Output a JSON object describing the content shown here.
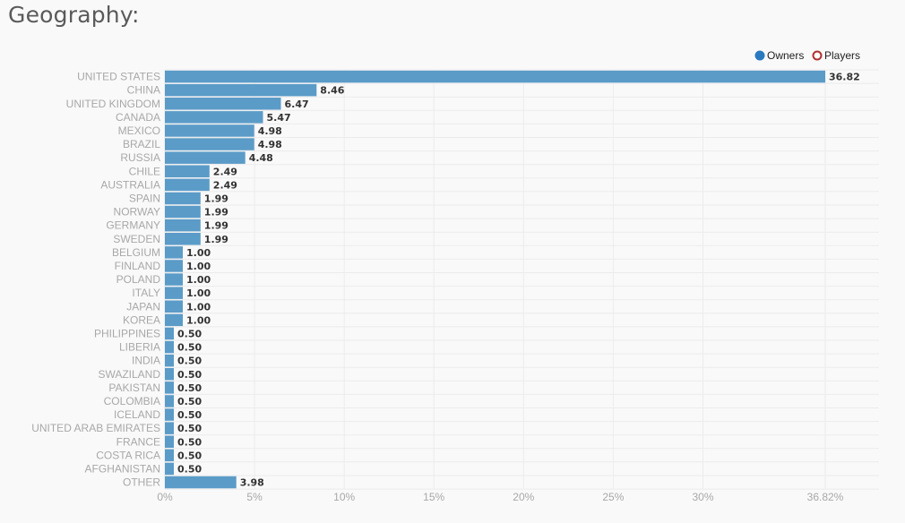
{
  "page": {
    "title": "Geography:"
  },
  "chart_data": {
    "type": "bar",
    "orientation": "horizontal",
    "categories": [
      "UNITED STATES",
      "CHINA",
      "UNITED KINGDOM",
      "CANADA",
      "MEXICO",
      "BRAZIL",
      "RUSSIA",
      "CHILE",
      "AUSTRALIA",
      "SPAIN",
      "NORWAY",
      "GERMANY",
      "SWEDEN",
      "BELGIUM",
      "FINLAND",
      "POLAND",
      "ITALY",
      "JAPAN",
      "KOREA",
      "PHILIPPINES",
      "LIBERIA",
      "INDIA",
      "SWAZILAND",
      "PAKISTAN",
      "COLOMBIA",
      "ICELAND",
      "UNITED ARAB EMIRATES",
      "FRANCE",
      "COSTA RICA",
      "AFGHANISTAN",
      "OTHER"
    ],
    "series": [
      {
        "name": "Owners",
        "color": "#5b9bc8",
        "values": [
          36.82,
          8.46,
          6.47,
          5.47,
          4.98,
          4.98,
          4.48,
          2.49,
          2.49,
          1.99,
          1.99,
          1.99,
          1.99,
          1.0,
          1.0,
          1.0,
          1.0,
          1.0,
          1.0,
          0.5,
          0.5,
          0.5,
          0.5,
          0.5,
          0.5,
          0.5,
          0.5,
          0.5,
          0.5,
          0.5,
          3.98
        ],
        "value_labels": [
          "36.82",
          "8.46",
          "6.47",
          "5.47",
          "4.98",
          "4.98",
          "4.48",
          "2.49",
          "2.49",
          "1.99",
          "1.99",
          "1.99",
          "1.99",
          "1.00",
          "1.00",
          "1.00",
          "1.00",
          "1.00",
          "1.00",
          "0.50",
          "0.50",
          "0.50",
          "0.50",
          "0.50",
          "0.50",
          "0.50",
          "0.50",
          "0.50",
          "0.50",
          "0.50",
          "3.98"
        ]
      }
    ],
    "legend": {
      "placement": "top-right",
      "items": [
        {
          "name": "Owners",
          "color": "#2a7abf",
          "style": "filled-circle"
        },
        {
          "name": "Players",
          "color": "#b03030",
          "style": "hollow-circle"
        }
      ]
    },
    "xlim": [
      0,
      36.82
    ],
    "xticks": [
      0,
      5,
      10,
      15,
      20,
      25,
      30,
      36.82
    ],
    "xtick_labels": [
      "0%",
      "5%",
      "10%",
      "15%",
      "20%",
      "25%",
      "30%",
      "36.82%"
    ],
    "grid": true,
    "title": "",
    "xlabel": "",
    "ylabel": ""
  }
}
